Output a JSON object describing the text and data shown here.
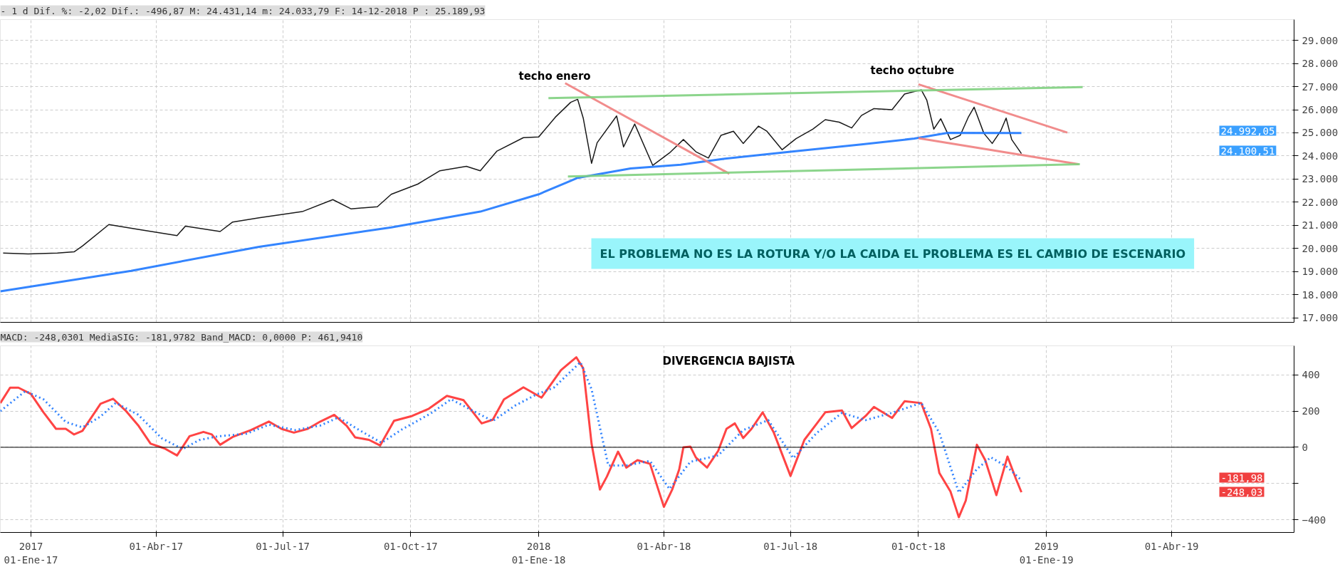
{
  "chart_data": [
    {
      "type": "line",
      "title": "- 1 d Dif. %: -2,02 Dif.: -496,87 M: 24.431,14 m: 24.033,79 F: 14-12-2018 P : 25.189,93",
      "xlim": [
        "2016-12-10",
        "2019-06-28"
      ],
      "ylim": [
        16800,
        29900
      ],
      "yticks": [
        {
          "value": 17000,
          "label": "17.000"
        },
        {
          "value": 18000,
          "label": "18.000"
        },
        {
          "value": 19000,
          "label": "19.000"
        },
        {
          "value": 20000,
          "label": "20.000"
        },
        {
          "value": 21000,
          "label": "21.000"
        },
        {
          "value": 22000,
          "label": "22.000"
        },
        {
          "value": 23000,
          "label": "23.000"
        },
        {
          "value": 24000,
          "label": "24.000"
        },
        {
          "value": 25000,
          "label": "25.000"
        },
        {
          "value": 26000,
          "label": "26.000"
        },
        {
          "value": 27000,
          "label": "27.000"
        },
        {
          "value": 28000,
          "label": "28.000"
        },
        {
          "value": 29000,
          "label": "29.000"
        }
      ],
      "xticks": [
        {
          "value": "2017-01-01",
          "label": null
        },
        {
          "value": "2017-04-01",
          "label": null
        },
        {
          "value": "2017-07-01",
          "label": null
        },
        {
          "value": "2017-10-01",
          "label": null
        },
        {
          "value": "2018-01-01",
          "label": null
        },
        {
          "value": "2018-04-01",
          "label": null
        },
        {
          "value": "2018-07-01",
          "label": null
        },
        {
          "value": "2018-10-01",
          "label": null
        },
        {
          "value": "2019-01-01",
          "label": null
        },
        {
          "value": "2019-04-01",
          "label": null
        }
      ],
      "tick_labels": "y",
      "grid": true,
      "series": [
        {
          "color": "#000000",
          "line_style": "solid",
          "x": [
            "2016-12-12",
            "2016-12-30",
            "2017-01-20",
            "2017-02-01",
            "2017-02-07",
            "2017-02-26",
            "2017-03-19",
            "2017-04-16",
            "2017-04-22",
            "2017-05-17",
            "2017-05-26",
            "2017-06-14",
            "2017-07-15",
            "2017-08-06",
            "2017-08-19",
            "2017-09-07",
            "2017-09-17",
            "2017-10-06",
            "2017-10-22",
            "2017-11-10",
            "2017-11-20",
            "2017-12-02",
            "2017-12-21",
            "2018-01-01",
            "2018-01-13",
            "2018-01-24",
            "2018-01-29",
            "2018-02-02",
            "2018-02-08",
            "2018-02-12",
            "2018-02-26",
            "2018-03-03",
            "2018-03-11",
            "2018-03-24",
            "2018-04-05",
            "2018-04-15",
            "2018-04-24",
            "2018-05-03",
            "2018-05-12",
            "2018-05-21",
            "2018-05-28",
            "2018-06-08",
            "2018-06-14",
            "2018-06-25",
            "2018-07-05",
            "2018-07-17",
            "2018-07-26",
            "2018-08-05",
            "2018-08-14",
            "2018-08-21",
            "2018-08-30",
            "2018-09-12",
            "2018-09-21",
            "2018-10-03",
            "2018-10-07",
            "2018-10-12",
            "2018-10-17",
            "2018-10-24",
            "2018-10-31",
            "2018-11-06",
            "2018-11-10",
            "2018-11-17",
            "2018-11-23",
            "2018-11-29",
            "2018-12-03",
            "2018-12-07",
            "2018-12-14"
          ],
          "values": [
            19800,
            19760,
            19800,
            19850,
            20100,
            21030,
            20820,
            20550,
            20960,
            20730,
            21140,
            21320,
            21590,
            22110,
            21710,
            21800,
            22340,
            22780,
            23360,
            23550,
            23360,
            24210,
            24790,
            24820,
            25680,
            26320,
            26450,
            25640,
            23680,
            24570,
            25730,
            24390,
            25380,
            23590,
            24130,
            24710,
            24180,
            23910,
            24890,
            25070,
            24540,
            25290,
            25070,
            24270,
            24750,
            25160,
            25570,
            25460,
            25210,
            25750,
            26050,
            26000,
            26680,
            26860,
            26410,
            25160,
            25610,
            24710,
            24890,
            25700,
            26110,
            24980,
            24540,
            25070,
            25640,
            24710,
            24100
          ]
        },
        {
          "color": "#1e78ff",
          "line_style": "solid",
          "x": [
            "2016-12-10",
            "2017-03-14",
            "2017-06-14",
            "2017-09-17",
            "2017-11-20",
            "2018-01-01",
            "2018-01-29",
            "2018-03-08",
            "2018-04-13",
            "2018-05-12",
            "2018-07-01",
            "2018-08-21",
            "2018-09-28",
            "2018-10-22",
            "2018-12-14"
          ],
          "values": [
            18140,
            19030,
            20070,
            20910,
            21590,
            22340,
            23050,
            23460,
            23620,
            23860,
            24180,
            24500,
            24750,
            25000,
            24990
          ]
        },
        {
          "color": "#f08080",
          "line_style": "solid",
          "x": [
            "2018-01-20",
            "2018-05-18"
          ],
          "values": [
            27150,
            23230
          ]
        },
        {
          "color": "#f08080",
          "line_style": "solid",
          "x": [
            "2018-10-01",
            "2019-01-16"
          ],
          "values": [
            27100,
            25010
          ]
        },
        {
          "color": "#f08080",
          "line_style": "solid",
          "x": [
            "2018-10-01",
            "2019-01-24"
          ],
          "values": [
            24770,
            23640
          ]
        },
        {
          "color": "#80d080",
          "line_style": "solid",
          "x": [
            "2018-01-08",
            "2019-01-27"
          ],
          "values": [
            26500,
            26980
          ]
        },
        {
          "color": "#80d080",
          "line_style": "solid",
          "x": [
            "2018-01-22",
            "2019-01-25"
          ],
          "values": [
            23110,
            23640
          ]
        }
      ],
      "annotations": [
        "techo enero",
        "techo octubre",
        "EL PROBLEMA NO ES LA ROTURA Y/O LA CAIDA EL PROBLEMA ES EL CAMBIO DE ESCENARIO",
        "24.992,05",
        "24.100,51"
      ]
    },
    {
      "type": "line",
      "title": "MACD: -248,0301 MediaSIG: -181,9782 Band_MACD: 0,0000 P: 461,9410",
      "xlim": [
        "2016-12-10",
        "2019-06-28"
      ],
      "ylim": [
        -470,
        560
      ],
      "yticks": [
        -400,
        {
          "value": -200,
          "label": null
        },
        0,
        200,
        400
      ],
      "xticks": [
        {
          "value": "2017-01-01",
          "label": "2017\n01-Ene-17"
        },
        {
          "value": "2017-04-01",
          "label": "01-Abr-17"
        },
        {
          "value": "2017-07-01",
          "label": "01-Jul-17"
        },
        {
          "value": "2017-10-01",
          "label": "01-Oct-17"
        },
        {
          "value": "2018-01-01",
          "label": "2018\n01-Ene-18"
        },
        {
          "value": "2018-04-01",
          "label": "01-Abr-18"
        },
        {
          "value": "2018-07-01",
          "label": "01-Jul-18"
        },
        {
          "value": "2018-10-01",
          "label": "01-Oct-18"
        },
        {
          "value": "2019-01-01",
          "label": "2019\n01-Ene-19"
        },
        {
          "value": "2019-04-01",
          "label": "01-Abr-19"
        }
      ],
      "grid": true,
      "ref_lines": [
        {
          "axis": "y",
          "value": 0,
          "color": "#000000"
        }
      ],
      "series": [
        {
          "color": "#ff3030",
          "line_style": "solid",
          "x": [
            "2016-12-10",
            "2016-12-17",
            "2016-12-23",
            "2017-01-01",
            "2017-01-10",
            "2017-01-19",
            "2017-01-26",
            "2017-02-01",
            "2017-02-07",
            "2017-02-20",
            "2017-03-01",
            "2017-03-10",
            "2017-03-19",
            "2017-03-28",
            "2017-04-07",
            "2017-04-16",
            "2017-04-25",
            "2017-05-05",
            "2017-05-11",
            "2017-05-17",
            "2017-05-26",
            "2017-06-08",
            "2017-06-21",
            "2017-06-30",
            "2017-07-09",
            "2017-07-19",
            "2017-07-28",
            "2017-08-07",
            "2017-08-16",
            "2017-08-22",
            "2017-09-01",
            "2017-09-09",
            "2017-09-19",
            "2017-10-02",
            "2017-10-14",
            "2017-10-27",
            "2017-11-08",
            "2017-11-21",
            "2017-11-29",
            "2017-12-07",
            "2017-12-21",
            "2018-01-03",
            "2018-01-17",
            "2018-01-28",
            "2018-02-02",
            "2018-02-08",
            "2018-02-14",
            "2018-02-19",
            "2018-02-27",
            "2018-03-05",
            "2018-03-13",
            "2018-03-22",
            "2018-04-01",
            "2018-04-07",
            "2018-04-12",
            "2018-04-15",
            "2018-04-20",
            "2018-04-24",
            "2018-05-02",
            "2018-05-10",
            "2018-05-16",
            "2018-05-22",
            "2018-05-28",
            "2018-06-03",
            "2018-06-11",
            "2018-06-19",
            "2018-07-01",
            "2018-07-11",
            "2018-07-20",
            "2018-07-26",
            "2018-08-07",
            "2018-08-14",
            "2018-08-24",
            "2018-08-30",
            "2018-09-12",
            "2018-09-21",
            "2018-10-03",
            "2018-10-10",
            "2018-10-16",
            "2018-10-24",
            "2018-10-30",
            "2018-11-04",
            "2018-11-12",
            "2018-11-18",
            "2018-11-26",
            "2018-12-04",
            "2018-12-10",
            "2018-12-14"
          ],
          "values": [
            244,
            329,
            329,
            294,
            193,
            102,
            102,
            71,
            91,
            240,
            268,
            203,
            122,
            20,
            -6,
            -45,
            61,
            85,
            71,
            14,
            57,
            95,
            142,
            102,
            81,
            102,
            142,
            179,
            118,
            55,
            41,
            10,
            146,
            173,
            213,
            284,
            260,
            132,
            152,
            264,
            331,
            274,
            426,
            497,
            436,
            20,
            -233,
            -162,
            -24,
            -112,
            -71,
            -91,
            -329,
            -233,
            -122,
            0,
            4,
            -57,
            -112,
            -20,
            102,
            132,
            51,
            102,
            193,
            81,
            -158,
            41,
            132,
            193,
            203,
            106,
            173,
            223,
            162,
            254,
            244,
            102,
            -142,
            -244,
            -386,
            -294,
            14,
            -71,
            -264,
            -51,
            -173,
            -248
          ]
        },
        {
          "color": "#1e78ff",
          "line_style": "dotted",
          "x": [
            "2016-12-10",
            "2016-12-28",
            "2017-01-10",
            "2017-01-26",
            "2017-02-07",
            "2017-02-20",
            "2017-03-03",
            "2017-03-19",
            "2017-04-05",
            "2017-04-20",
            "2017-05-02",
            "2017-05-15",
            "2017-06-05",
            "2017-06-21",
            "2017-07-10",
            "2017-07-28",
            "2017-08-10",
            "2017-08-25",
            "2017-09-10",
            "2017-09-25",
            "2017-10-15",
            "2017-10-30",
            "2017-11-15",
            "2017-11-29",
            "2017-12-15",
            "2017-12-30",
            "2018-01-12",
            "2018-01-31",
            "2018-02-08",
            "2018-02-20",
            "2018-03-05",
            "2018-03-22",
            "2018-04-05",
            "2018-04-20",
            "2018-05-10",
            "2018-05-28",
            "2018-06-15",
            "2018-07-03",
            "2018-07-20",
            "2018-08-07",
            "2018-08-24",
            "2018-09-12",
            "2018-10-03",
            "2018-10-16",
            "2018-10-30",
            "2018-11-12",
            "2018-11-22",
            "2018-12-04",
            "2018-12-14"
          ],
          "values": [
            200,
            310,
            265,
            140,
            110,
            170,
            245,
            180,
            50,
            -10,
            40,
            60,
            75,
            125,
            95,
            120,
            165,
            95,
            25,
            100,
            185,
            265,
            200,
            145,
            230,
            290,
            330,
            470,
            320,
            -100,
            -100,
            -75,
            -230,
            -80,
            -45,
            95,
            150,
            -60,
            80,
            190,
            150,
            190,
            245,
            80,
            -250,
            -120,
            -55,
            -110,
            -182
          ]
        }
      ],
      "annotations": [
        "DIVERGENCIA BAJISTA",
        "-181,98",
        "-248,03"
      ]
    }
  ]
}
